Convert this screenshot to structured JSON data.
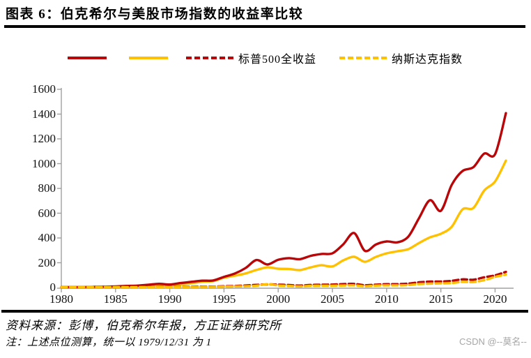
{
  "title": "图表 6：伯克希尔与美股市场指数的收益率比较",
  "legend": [
    {
      "label": "",
      "color": "#b80609",
      "style": "solid"
    },
    {
      "label": "",
      "color": "#ffc000",
      "style": "solid"
    },
    {
      "label": "标普500全收益",
      "color": "#b80609",
      "style": "dashed"
    },
    {
      "label": "纳斯达克指数",
      "color": "#ffc000",
      "style": "dashed"
    }
  ],
  "chart_data": {
    "type": "line",
    "title": "伯克希尔与美股市场指数的收益率比较",
    "xlabel": "",
    "ylabel": "",
    "xlim": [
      1980,
      2021
    ],
    "ylim": [
      0,
      1600
    ],
    "grid": false,
    "legend_position": "top",
    "x_ticks": [
      1980,
      1985,
      1990,
      1995,
      2000,
      2005,
      2010,
      2015,
      2020
    ],
    "y_ticks": [
      0,
      200,
      400,
      600,
      800,
      1000,
      1200,
      1400,
      1600
    ],
    "x": [
      1980,
      1981,
      1982,
      1983,
      1984,
      1985,
      1986,
      1987,
      1988,
      1989,
      1990,
      1991,
      1992,
      1993,
      1994,
      1995,
      1996,
      1997,
      1998,
      1999,
      2000,
      2001,
      2002,
      2003,
      2004,
      2005,
      2006,
      2007,
      2008,
      2009,
      2010,
      2011,
      2012,
      2013,
      2014,
      2015,
      2016,
      2017,
      2018,
      2019,
      2020,
      2021
    ],
    "series": [
      {
        "name": "",
        "color": "#ffc000",
        "style": "solid",
        "values": [
          1,
          2,
          3,
          4,
          5,
          7,
          9,
          11,
          14,
          18,
          16,
          25,
          34,
          47,
          52,
          79,
          96,
          114,
          142,
          163,
          152,
          150,
          141,
          163,
          180,
          170,
          219,
          248,
          208,
          247,
          276,
          293,
          310,
          360,
          405,
          434,
          490,
          631,
          642,
          783,
          856,
          1025
        ]
      },
      {
        "name": "",
        "color": "#b80609",
        "style": "solid",
        "values": [
          1,
          2,
          3,
          5,
          6,
          9,
          13,
          15,
          22,
          30,
          24,
          36,
          46,
          55,
          57,
          86,
          113,
          158,
          222,
          186,
          224,
          237,
          229,
          256,
          271,
          276,
          349,
          440,
          296,
          347,
          372,
          365,
          411,
          562,
          705,
          619,
          828,
          941,
          971,
          1081,
          1076,
          1408
        ]
      },
      {
        "name": "标普500全收益",
        "color": "#b80609",
        "style": "dashed",
        "values": [
          1.3,
          1.2,
          1.5,
          1.8,
          1.9,
          2.5,
          3,
          3.2,
          3.7,
          4.8,
          4.7,
          6.1,
          6.6,
          7.2,
          7.3,
          10,
          12.4,
          16.5,
          21.2,
          25.6,
          23.3,
          20.5,
          16,
          20.6,
          22.8,
          23.9,
          27.7,
          29.2,
          18.4,
          23.3,
          26.8,
          27.3,
          31.7,
          42,
          47.7,
          48.4,
          54.2,
          66,
          63.1,
          83,
          98.2,
          126.3
        ]
      },
      {
        "name": "纳斯达克指数",
        "color": "#ffc000",
        "style": "dashed",
        "values": [
          1.5,
          1.3,
          1.5,
          1.8,
          1.6,
          2.1,
          2.3,
          2.2,
          2.5,
          3,
          2.5,
          3.9,
          4.3,
          4.8,
          5,
          6.9,
          8.5,
          10.4,
          14.5,
          26.9,
          16.4,
          12.9,
          8.8,
          13.3,
          14.4,
          14.6,
          16,
          17.6,
          10.4,
          15,
          17.6,
          17.2,
          19.8,
          27.6,
          31.5,
          33.1,
          35.6,
          45.7,
          43.9,
          59.4,
          85.4,
          103.6
        ]
      }
    ]
  },
  "footer": {
    "source": "资料来源：彭博，伯克希尔年报，方正证券研究所",
    "note": "注：上述点位测算，统一以 1979/12/31 为 1",
    "watermark": "CSDN @--莫名--"
  },
  "colors": {
    "accent_red": "#b80609",
    "accent_yellow": "#ffc000",
    "axis": "#a0a0a0",
    "rule": "#000000",
    "watermark": "#a6a6a6"
  }
}
